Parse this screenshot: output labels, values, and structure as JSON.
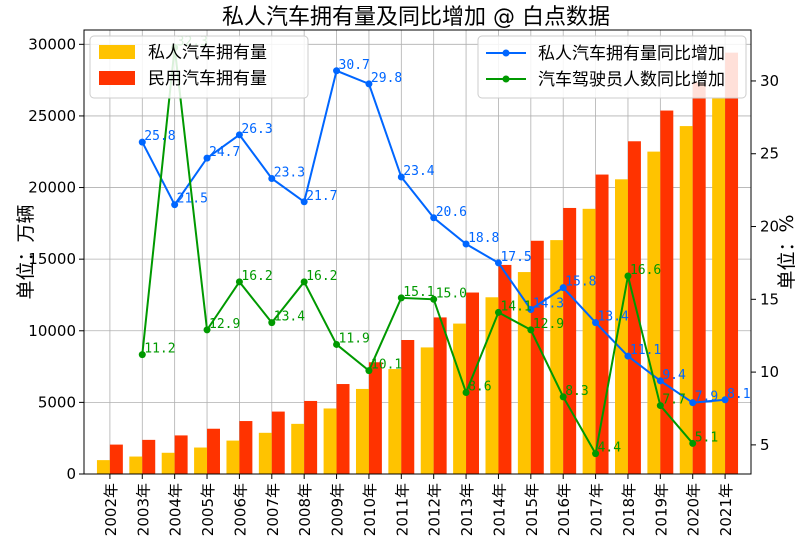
{
  "chart_data": {
    "type": "bar",
    "title": "私人汽车拥有量及同比增加 @ 白点数据",
    "categories": [
      "2002年",
      "2003年",
      "2004年",
      "2005年",
      "2006年",
      "2007年",
      "2008年",
      "2009年",
      "2010年",
      "2011年",
      "2012年",
      "2013年",
      "2014年",
      "2015年",
      "2016年",
      "2017年",
      "2018年",
      "2019年",
      "2020年",
      "2021年"
    ],
    "ylabel_left": "单位：万辆",
    "ylabel_right": "单位：%",
    "ylim_left": [
      0,
      31000
    ],
    "yticks_left": [
      0,
      5000,
      10000,
      15000,
      20000,
      25000,
      30000
    ],
    "ylim_right": [
      3,
      33.5
    ],
    "yticks_right": [
      5,
      10,
      15,
      20,
      25,
      30
    ],
    "grid": true,
    "bar_series": [
      {
        "name": "私人汽车拥有量",
        "color": "#FFC300",
        "values": [
          969,
          1219,
          1482,
          1848,
          2333,
          2876,
          3501,
          4575,
          5939,
          7327,
          8838,
          10502,
          12339,
          14099,
          16330,
          18515,
          20575,
          22509,
          24291,
          26246
        ]
      },
      {
        "name": "民用汽车拥有量",
        "color": "#FF3300",
        "values": [
          2053,
          2383,
          2694,
          3160,
          3697,
          4358,
          5100,
          6281,
          7802,
          9356,
          10933,
          12670,
          14598,
          16284,
          18575,
          20907,
          23231,
          25376,
          27341,
          29419
        ]
      }
    ],
    "line_series": [
      {
        "name": "私人汽车拥有量同比增加",
        "color": "#0066FF",
        "values": [
          null,
          25.8,
          21.5,
          24.7,
          26.3,
          23.3,
          21.7,
          30.7,
          29.8,
          23.4,
          20.6,
          18.8,
          17.5,
          14.3,
          15.8,
          13.4,
          11.1,
          9.4,
          7.9,
          8.1
        ],
        "labels": [
          "",
          "25.8",
          "21.5",
          "24.7",
          "26.3",
          "23.3",
          "21.7",
          "30.7",
          "29.8",
          "23.4",
          "20.6",
          "18.8",
          "17.5",
          "14.3",
          "15.8",
          "13.4",
          "11.1",
          "9.4",
          "7.9",
          "8.1"
        ]
      },
      {
        "name": "汽车驾驶员人数同比增加",
        "color": "#009900",
        "values": [
          null,
          11.2,
          32.3,
          12.9,
          16.2,
          13.4,
          16.2,
          11.9,
          10.1,
          15.1,
          15.0,
          8.6,
          14.1,
          12.9,
          8.3,
          4.4,
          16.6,
          7.7,
          5.1,
          null
        ],
        "labels": [
          "",
          "11.2",
          "32.3",
          "12.9",
          "16.2",
          "13.4",
          "16.2",
          "11.9",
          "10.1",
          "15.1",
          "15.0",
          "8.6",
          "14.1",
          "12.9",
          "8.3",
          "4.4",
          "16.6",
          "7.7",
          "5.1",
          ""
        ]
      }
    ],
    "legend_left_position": "top-left",
    "legend_right_position": "top-right"
  }
}
